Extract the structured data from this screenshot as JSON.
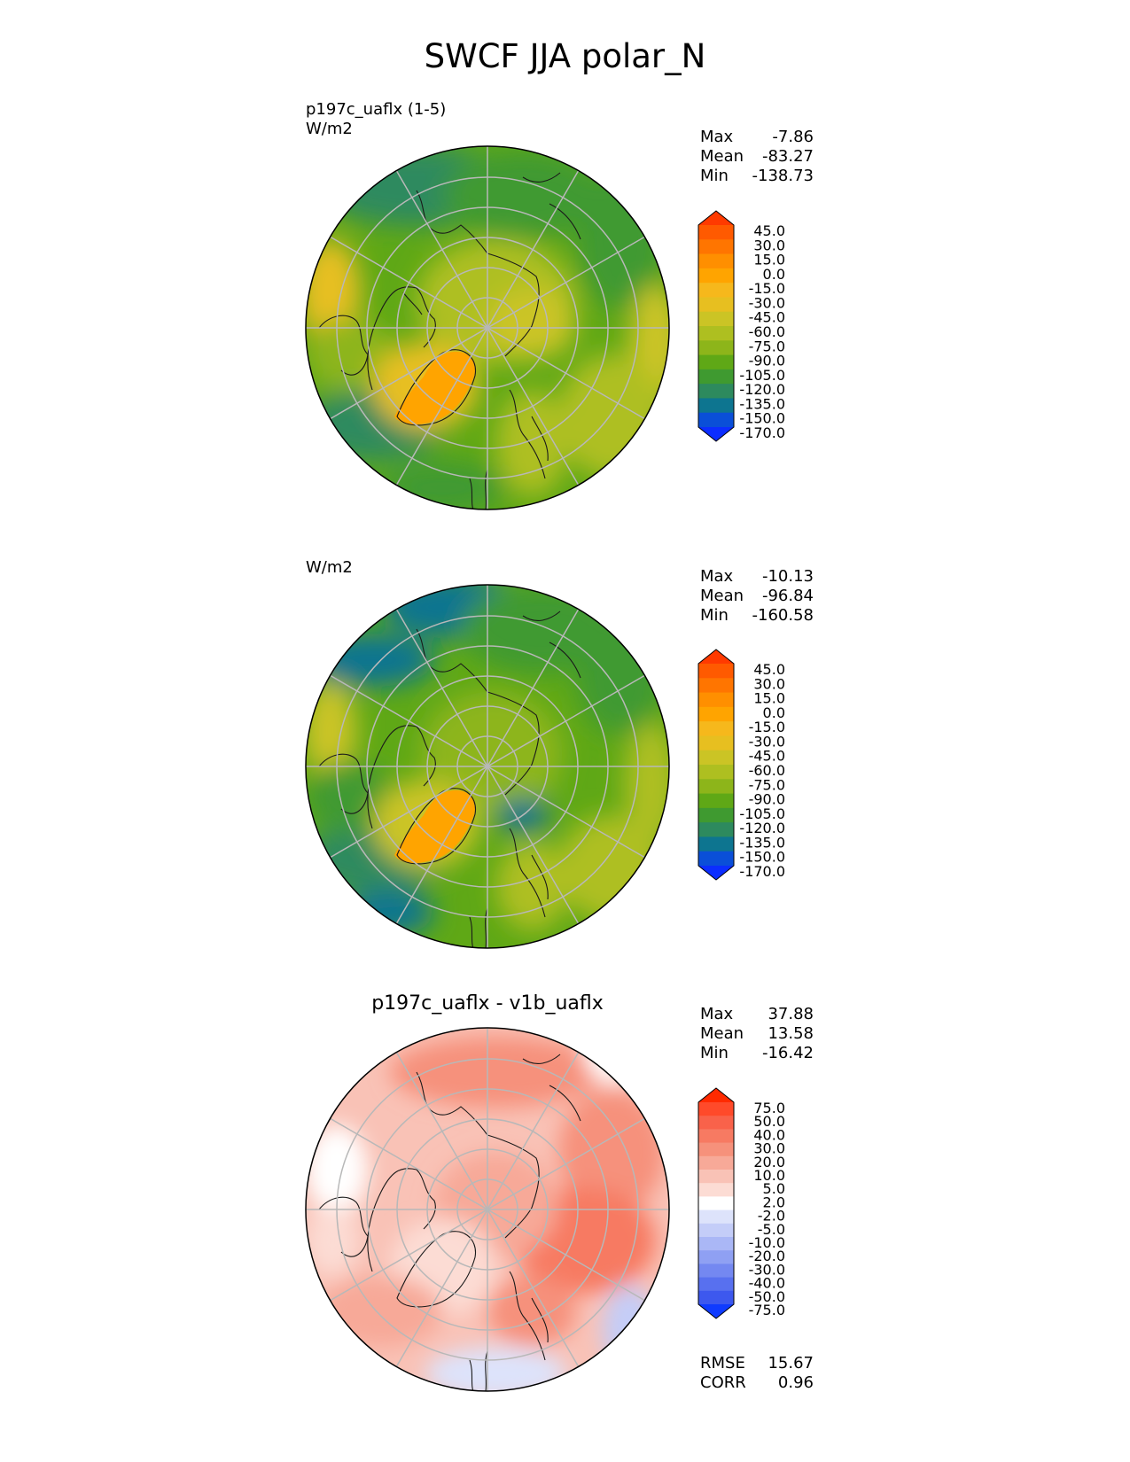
{
  "title": "SWCF JJA polar_N",
  "panels": [
    {
      "id": "test",
      "title": "",
      "subtitle_lines": [
        "p197c_uaflx (1-5)",
        "W/m2"
      ],
      "stats": [
        {
          "label": "Max",
          "value": "-7.86"
        },
        {
          "label": "Mean",
          "value": "-83.27"
        },
        {
          "label": "Min",
          "value": "-138.73"
        }
      ],
      "colorbar": {
        "levels": [
          "45.0",
          "30.0",
          "15.0",
          "0.0",
          "-15.0",
          "-30.0",
          "-45.0",
          "-60.0",
          "-75.0",
          "-90.0",
          "-105.0",
          "-120.0",
          "-135.0",
          "-150.0",
          "-170.0"
        ],
        "colors": [
          "#ff3a00",
          "#ff5a00",
          "#ff7500",
          "#ff8f00",
          "#ffa400",
          "#f6b81c",
          "#e7bf20",
          "#cbc425",
          "#aebf20",
          "#8db51a",
          "#5fa816",
          "#3f9a30",
          "#2d8a5e",
          "#0d7590",
          "#0a4fd8",
          "#0b2dff"
        ]
      }
    },
    {
      "id": "reference",
      "title": "",
      "subtitle_lines": [
        "W/m2"
      ],
      "stats": [
        {
          "label": "Max",
          "value": "-10.13"
        },
        {
          "label": "Mean",
          "value": "-96.84"
        },
        {
          "label": "Min",
          "value": "-160.58"
        }
      ],
      "colorbar": {
        "levels": [
          "45.0",
          "30.0",
          "15.0",
          "0.0",
          "-15.0",
          "-30.0",
          "-45.0",
          "-60.0",
          "-75.0",
          "-90.0",
          "-105.0",
          "-120.0",
          "-135.0",
          "-150.0",
          "-170.0"
        ],
        "colors": [
          "#ff3a00",
          "#ff5a00",
          "#ff7500",
          "#ff8f00",
          "#ffa400",
          "#f6b81c",
          "#e7bf20",
          "#cbc425",
          "#aebf20",
          "#8db51a",
          "#5fa816",
          "#3f9a30",
          "#2d8a5e",
          "#0d7590",
          "#0a4fd8",
          "#0b2dff"
        ]
      }
    },
    {
      "id": "difference",
      "title": "p197c_uaflx - v1b_uaflx",
      "subtitle_lines": [],
      "stats": [
        {
          "label": "Max",
          "value": "37.88"
        },
        {
          "label": "Mean",
          "value": "13.58"
        },
        {
          "label": "Min",
          "value": "-16.42"
        }
      ],
      "extra_stats": [
        {
          "label": "RMSE",
          "value": "15.67"
        },
        {
          "label": "CORR",
          "value": "0.96"
        }
      ],
      "colorbar": {
        "levels": [
          "75.0",
          "50.0",
          "40.0",
          "30.0",
          "20.0",
          "10.0",
          "5.0",
          "2.0",
          "-2.0",
          "-5.0",
          "-10.0",
          "-20.0",
          "-30.0",
          "-40.0",
          "-50.0",
          "-75.0"
        ],
        "colors": [
          "#ff2a00",
          "#ff4a2a",
          "#f9624a",
          "#f77a62",
          "#f6917b",
          "#f7a998",
          "#f9c2b6",
          "#fcdcd4",
          "#ffffff",
          "#dde3fb",
          "#c4cdf8",
          "#aab7f6",
          "#8fa0f3",
          "#7488f1",
          "#5870ef",
          "#3d58ee",
          "#0f3bff"
        ]
      }
    }
  ]
}
